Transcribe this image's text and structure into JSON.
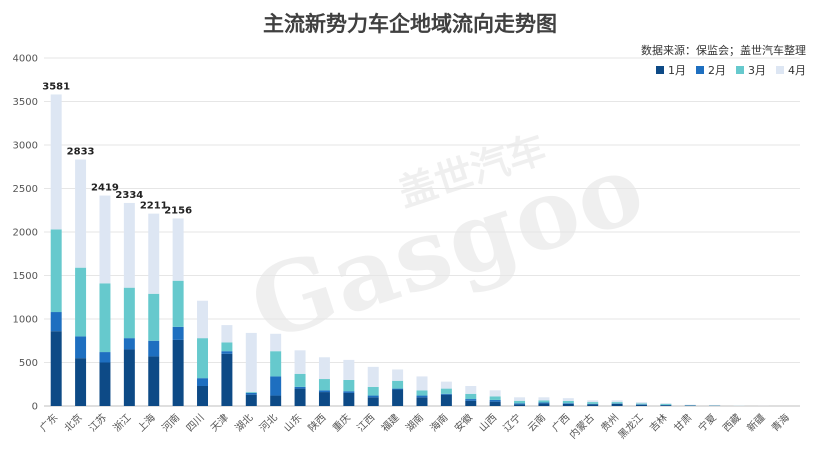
{
  "chart_data": {
    "type": "bar",
    "stacked": true,
    "title": "主流新势力车企地域流向走势图",
    "source": "数据来源：保监会；盖世汽车整理",
    "watermark": "盖世汽车 Gasgoo",
    "ylim": [
      0,
      4000
    ],
    "yticks": [
      0,
      500,
      1000,
      1500,
      2000,
      2500,
      3000,
      3500,
      4000
    ],
    "grid": true,
    "legend_position": "top-right",
    "categories": [
      "广东",
      "北京",
      "江苏",
      "浙江",
      "上海",
      "河南",
      "四川",
      "天津",
      "湖北",
      "河北",
      "山东",
      "陕西",
      "重庆",
      "江西",
      "福建",
      "湖南",
      "海南",
      "安徽",
      "山西",
      "辽宁",
      "云南",
      "广西",
      "内蒙古",
      "贵州",
      "黑龙江",
      "吉林",
      "甘肃",
      "宁夏",
      "西藏",
      "新疆",
      "青海"
    ],
    "series": [
      {
        "name": "1月",
        "color": "#0d4a86",
        "values": [
          860,
          550,
          500,
          650,
          570,
          760,
          230,
          600,
          130,
          120,
          200,
          160,
          150,
          100,
          190,
          100,
          130,
          60,
          50,
          20,
          30,
          25,
          20,
          25,
          15,
          10,
          5,
          3,
          0,
          0,
          0
        ]
      },
      {
        "name": "2月",
        "color": "#1e6fc0",
        "values": [
          220,
          250,
          120,
          130,
          180,
          150,
          90,
          30,
          20,
          220,
          20,
          20,
          20,
          20,
          10,
          20,
          10,
          20,
          20,
          10,
          10,
          8,
          5,
          5,
          5,
          3,
          2,
          1,
          0,
          0,
          0
        ]
      },
      {
        "name": "3月",
        "color": "#66c9cd",
        "values": [
          950,
          790,
          790,
          580,
          540,
          530,
          460,
          100,
          10,
          290,
          150,
          130,
          130,
          100,
          90,
          60,
          60,
          60,
          40,
          30,
          25,
          25,
          20,
          15,
          10,
          10,
          3,
          3,
          1,
          0,
          0
        ]
      },
      {
        "name": "4月",
        "color": "#dde6f3",
        "values": [
          1551,
          1243,
          1009,
          974,
          921,
          716,
          430,
          200,
          680,
          200,
          270,
          250,
          230,
          230,
          130,
          160,
          80,
          90,
          70,
          40,
          35,
          32,
          20,
          20,
          15,
          10,
          5,
          5,
          2,
          1,
          0
        ]
      }
    ],
    "totals_labels": [
      {
        "category": "广东",
        "value": "3581"
      },
      {
        "category": "北京",
        "value": "2833"
      },
      {
        "category": "江苏",
        "value": "2419"
      },
      {
        "category": "浙江",
        "value": "2334"
      },
      {
        "category": "上海",
        "value": "2211"
      },
      {
        "category": "河南",
        "value": "2156"
      }
    ]
  }
}
